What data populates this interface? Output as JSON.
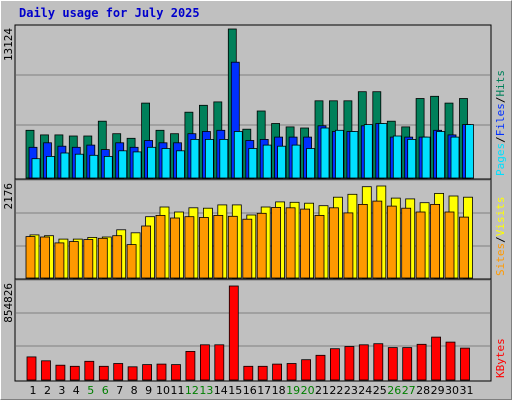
{
  "chart_data": [
    {
      "type": "bar",
      "title": "Daily usage for July 2025",
      "panel": "hits-files-pages",
      "scale_max_label": "13124",
      "ylim": [
        0,
        13124
      ],
      "categories": [
        "1",
        "2",
        "3",
        "4",
        "5",
        "6",
        "7",
        "8",
        "9",
        "10",
        "11",
        "12",
        "13",
        "14",
        "15",
        "16",
        "17",
        "18",
        "19",
        "20",
        "21",
        "22",
        "23",
        "24",
        "25",
        "26",
        "27",
        "28",
        "29",
        "30",
        "31"
      ],
      "weekend_days": [
        "5",
        "6",
        "12",
        "13",
        "19",
        "20",
        "26",
        "27"
      ],
      "series": [
        {
          "name": "Hits",
          "color": "#00805a",
          "values": [
            4200,
            3800,
            3800,
            3700,
            3700,
            5000,
            3900,
            3500,
            6600,
            4200,
            3900,
            5800,
            6400,
            6700,
            13124,
            4300,
            5900,
            4800,
            4500,
            4400,
            6800,
            6800,
            6800,
            7600,
            7600,
            5000,
            4500,
            7000,
            7200,
            6600,
            7000
          ]
        },
        {
          "name": "Files",
          "color": "#0030ff",
          "values": [
            2700,
            3100,
            2800,
            2700,
            2900,
            2500,
            3100,
            2700,
            3300,
            3100,
            3100,
            3900,
            4100,
            4200,
            10200,
            3300,
            3400,
            3600,
            3600,
            3600,
            4600,
            4100,
            4100,
            4600,
            4800,
            3600,
            3600,
            3600,
            4200,
            3800,
            4700
          ]
        },
        {
          "name": "Pages",
          "color": "#00e0ff",
          "values": [
            1700,
            1900,
            2200,
            2100,
            2000,
            1900,
            2400,
            2300,
            2700,
            2600,
            2400,
            3400,
            3400,
            3400,
            4100,
            2600,
            2900,
            2800,
            2900,
            2600,
            4400,
            4200,
            4100,
            4700,
            4800,
            3700,
            3400,
            3600,
            4100,
            3600,
            4700
          ]
        }
      ],
      "axis_label_parts": [
        "Pages",
        "/",
        "Files",
        "/",
        "Hits"
      ]
    },
    {
      "type": "bar",
      "panel": "visits-sites",
      "scale_max_label": "2176",
      "ylim": [
        0,
        2176
      ],
      "categories": [
        "1",
        "2",
        "3",
        "4",
        "5",
        "6",
        "7",
        "8",
        "9",
        "10",
        "11",
        "12",
        "13",
        "14",
        "15",
        "16",
        "17",
        "18",
        "19",
        "20",
        "21",
        "22",
        "23",
        "24",
        "25",
        "26",
        "27",
        "28",
        "29",
        "30",
        "31"
      ],
      "series": [
        {
          "name": "Visits",
          "color": "#ffff00",
          "values": [
            1020,
            1000,
            920,
            920,
            960,
            970,
            1140,
            1070,
            1450,
            1680,
            1560,
            1660,
            1650,
            1730,
            1730,
            1490,
            1680,
            1800,
            1790,
            1770,
            1710,
            1910,
            1980,
            2160,
            2176,
            1890,
            1870,
            1780,
            2000,
            1940,
            1910
          ]
        },
        {
          "name": "Sites",
          "color": "#ff9900",
          "values": [
            980,
            970,
            830,
            860,
            910,
            940,
            1000,
            790,
            1230,
            1480,
            1420,
            1450,
            1430,
            1480,
            1460,
            1390,
            1530,
            1670,
            1660,
            1630,
            1480,
            1660,
            1540,
            1740,
            1820,
            1700,
            1650,
            1560,
            1740,
            1560,
            1440
          ]
        }
      ],
      "axis_label_parts": [
        "Sites",
        "/",
        "Visits"
      ]
    },
    {
      "type": "bar",
      "panel": "kbytes",
      "scale_max_label": "854826",
      "ylim": [
        0,
        854826
      ],
      "categories": [
        "1",
        "2",
        "3",
        "4",
        "5",
        "6",
        "7",
        "8",
        "9",
        "10",
        "11",
        "12",
        "13",
        "14",
        "15",
        "16",
        "17",
        "18",
        "19",
        "20",
        "21",
        "22",
        "23",
        "24",
        "25",
        "26",
        "27",
        "28",
        "29",
        "30",
        "31"
      ],
      "series": [
        {
          "name": "KBytes",
          "color": "#ff0000",
          "values": [
            210000,
            175000,
            135000,
            125000,
            170000,
            125000,
            150000,
            120000,
            140000,
            145000,
            140000,
            260000,
            320000,
            320000,
            854826,
            125000,
            125000,
            145000,
            150000,
            185000,
            225000,
            285000,
            305000,
            320000,
            330000,
            295000,
            295000,
            325000,
            390000,
            345000,
            290000
          ]
        }
      ],
      "axis_label_parts": [
        "KBytes"
      ]
    }
  ],
  "colors": {
    "background": "#c0c0c0",
    "plot_bg": "#c0c0c0",
    "gridline": "#7f7f7f",
    "title": "#0000cc",
    "weekend_tick": "#007f00",
    "weekday_tick": "#000000",
    "separator": "#000000"
  }
}
